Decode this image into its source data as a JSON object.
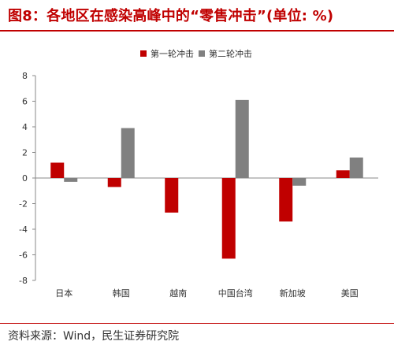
{
  "title": "图8：各地区在感染高峰中的“零售冲击”(单位: %)",
  "source": "资料来源：Wind，民生证券研究院",
  "colors": {
    "series1": "#c00000",
    "series2": "#808080",
    "accent": "#c00000"
  },
  "chart_data": {
    "type": "bar",
    "categories": [
      "日本",
      "韩国",
      "越南",
      "中国台湾",
      "新加坡",
      "美国"
    ],
    "series": [
      {
        "name": "第一轮冲击",
        "values": [
          1.2,
          -0.7,
          -2.7,
          -6.3,
          -3.4,
          0.6
        ]
      },
      {
        "name": "第二轮冲击",
        "values": [
          -0.3,
          3.9,
          null,
          6.1,
          -0.6,
          1.6
        ]
      }
    ],
    "yticks": [
      8,
      6,
      4,
      2,
      0,
      -2,
      -4,
      -6,
      -8
    ],
    "ylim": [
      -8,
      8
    ],
    "legend": "top-center",
    "grid": false
  }
}
